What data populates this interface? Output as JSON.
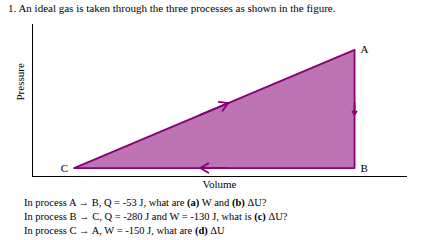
{
  "chart_data": {
    "type": "polygon",
    "title": "1. An ideal gas is taken through the three processes as shown in the figure.",
    "xlabel": "Volume",
    "ylabel": "Pressure",
    "x": [
      0.3,
      3.0,
      3.0
    ],
    "values": [
      0.2,
      3.0,
      0.2
    ],
    "point_labels": [
      "C",
      "A",
      "B"
    ],
    "color": "#880077",
    "xlim": [
      -0.1,
      3.5
    ],
    "ylim": [
      0,
      3.6
    ],
    "xticks": [],
    "yticks": [],
    "tick_labels": false,
    "annotations": [
      "In process A → B, Q = -53 J, what are (a) W and (b) ΔU?",
      "In process B → C, Q = -280 J and W = -130 J, what is (c) ΔU?",
      "In process C → A, W = -150 J, what are (d) ΔU"
    ]
  }
}
